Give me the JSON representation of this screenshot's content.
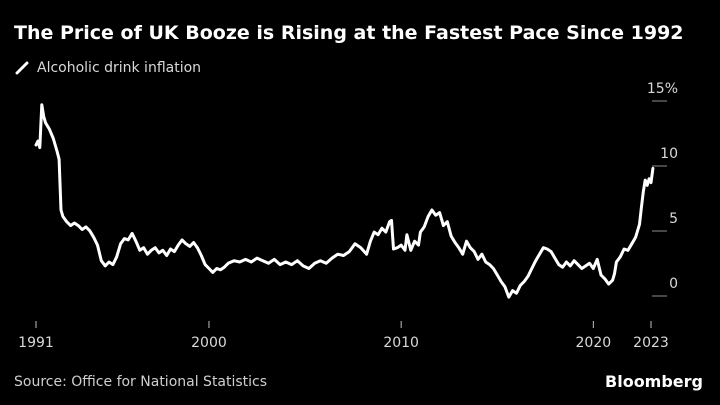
{
  "title": "The Price of UK Booze is Rising at the Fastest Pace Since 1992",
  "source": "Source: Office for National Statistics",
  "brand": "Bloomberg",
  "chart_data": {
    "type": "line",
    "series": [
      {
        "name": "Alcoholic drink inflation",
        "color": "#ffffff",
        "points": [
          [
            1991.0,
            11.0
          ],
          [
            1991.1,
            11.3
          ],
          [
            1991.2,
            10.8
          ],
          [
            1991.3,
            14.1
          ],
          [
            1991.4,
            13.2
          ],
          [
            1991.5,
            12.7
          ],
          [
            1991.7,
            12.2
          ],
          [
            1991.9,
            11.5
          ],
          [
            1992.1,
            10.5
          ],
          [
            1992.2,
            9.9
          ],
          [
            1992.3,
            6.0
          ],
          [
            1992.4,
            5.5
          ],
          [
            1992.6,
            5.1
          ],
          [
            1992.8,
            4.8
          ],
          [
            1993.0,
            5.0
          ],
          [
            1993.2,
            4.8
          ],
          [
            1993.4,
            4.5
          ],
          [
            1993.6,
            4.7
          ],
          [
            1993.8,
            4.4
          ],
          [
            1994.0,
            3.9
          ],
          [
            1994.2,
            3.3
          ],
          [
            1994.4,
            2.1
          ],
          [
            1994.6,
            1.7
          ],
          [
            1994.8,
            2.0
          ],
          [
            1995.0,
            1.8
          ],
          [
            1995.2,
            2.4
          ],
          [
            1995.4,
            3.4
          ],
          [
            1995.6,
            3.8
          ],
          [
            1995.8,
            3.7
          ],
          [
            1996.0,
            4.2
          ],
          [
            1996.2,
            3.6
          ],
          [
            1996.4,
            2.9
          ],
          [
            1996.6,
            3.1
          ],
          [
            1996.8,
            2.6
          ],
          [
            1997.0,
            2.9
          ],
          [
            1997.2,
            3.1
          ],
          [
            1997.4,
            2.7
          ],
          [
            1997.6,
            2.9
          ],
          [
            1997.8,
            2.5
          ],
          [
            1998.0,
            3.0
          ],
          [
            1998.2,
            2.8
          ],
          [
            1998.4,
            3.3
          ],
          [
            1998.6,
            3.7
          ],
          [
            1998.8,
            3.4
          ],
          [
            1999.0,
            3.2
          ],
          [
            1999.2,
            3.5
          ],
          [
            1999.4,
            3.1
          ],
          [
            1999.6,
            2.5
          ],
          [
            1999.8,
            1.8
          ],
          [
            2000.0,
            1.5
          ],
          [
            2000.2,
            1.2
          ],
          [
            2000.4,
            1.5
          ],
          [
            2000.6,
            1.4
          ],
          [
            2000.8,
            1.6
          ],
          [
            2001.0,
            1.9
          ],
          [
            2001.3,
            2.1
          ],
          [
            2001.6,
            2.0
          ],
          [
            2001.9,
            2.2
          ],
          [
            2002.2,
            2.0
          ],
          [
            2002.5,
            2.3
          ],
          [
            2002.8,
            2.1
          ],
          [
            2003.1,
            1.9
          ],
          [
            2003.4,
            2.2
          ],
          [
            2003.7,
            1.8
          ],
          [
            2004.0,
            2.0
          ],
          [
            2004.3,
            1.8
          ],
          [
            2004.6,
            2.1
          ],
          [
            2004.9,
            1.7
          ],
          [
            2005.2,
            1.5
          ],
          [
            2005.5,
            1.9
          ],
          [
            2005.8,
            2.1
          ],
          [
            2006.1,
            1.9
          ],
          [
            2006.4,
            2.3
          ],
          [
            2006.7,
            2.6
          ],
          [
            2007.0,
            2.5
          ],
          [
            2007.3,
            2.8
          ],
          [
            2007.6,
            3.4
          ],
          [
            2007.9,
            3.1
          ],
          [
            2008.2,
            2.6
          ],
          [
            2008.4,
            3.6
          ],
          [
            2008.6,
            4.3
          ],
          [
            2008.8,
            4.1
          ],
          [
            2009.0,
            4.6
          ],
          [
            2009.2,
            4.3
          ],
          [
            2009.4,
            5.1
          ],
          [
            2009.5,
            5.2
          ],
          [
            2009.6,
            3.0
          ],
          [
            2009.8,
            3.1
          ],
          [
            2010.0,
            3.3
          ],
          [
            2010.2,
            2.9
          ],
          [
            2010.3,
            4.1
          ],
          [
            2010.5,
            2.9
          ],
          [
            2010.7,
            3.6
          ],
          [
            2010.9,
            3.3
          ],
          [
            2011.0,
            4.3
          ],
          [
            2011.2,
            4.7
          ],
          [
            2011.4,
            5.5
          ],
          [
            2011.6,
            6.0
          ],
          [
            2011.8,
            5.6
          ],
          [
            2012.0,
            5.8
          ],
          [
            2012.2,
            4.8
          ],
          [
            2012.4,
            5.1
          ],
          [
            2012.6,
            4.0
          ],
          [
            2012.8,
            3.5
          ],
          [
            2013.0,
            3.1
          ],
          [
            2013.2,
            2.6
          ],
          [
            2013.4,
            3.6
          ],
          [
            2013.6,
            3.1
          ],
          [
            2013.8,
            2.8
          ],
          [
            2014.0,
            2.2
          ],
          [
            2014.2,
            2.6
          ],
          [
            2014.4,
            2.0
          ],
          [
            2014.6,
            1.8
          ],
          [
            2014.8,
            1.5
          ],
          [
            2015.0,
            1.0
          ],
          [
            2015.2,
            0.5
          ],
          [
            2015.4,
            0.1
          ],
          [
            2015.6,
            -0.7
          ],
          [
            2015.8,
            -0.2
          ],
          [
            2016.0,
            -0.4
          ],
          [
            2016.2,
            0.2
          ],
          [
            2016.4,
            0.5
          ],
          [
            2016.6,
            0.9
          ],
          [
            2016.8,
            1.5
          ],
          [
            2017.0,
            2.1
          ],
          [
            2017.2,
            2.6
          ],
          [
            2017.4,
            3.1
          ],
          [
            2017.6,
            3.0
          ],
          [
            2017.8,
            2.8
          ],
          [
            2018.0,
            2.3
          ],
          [
            2018.2,
            1.8
          ],
          [
            2018.4,
            1.6
          ],
          [
            2018.6,
            2.0
          ],
          [
            2018.8,
            1.7
          ],
          [
            2019.0,
            2.1
          ],
          [
            2019.2,
            1.8
          ],
          [
            2019.4,
            1.5
          ],
          [
            2019.6,
            1.7
          ],
          [
            2019.8,
            1.9
          ],
          [
            2020.0,
            1.5
          ],
          [
            2020.2,
            2.2
          ],
          [
            2020.4,
            1.0
          ],
          [
            2020.6,
            0.7
          ],
          [
            2020.8,
            0.3
          ],
          [
            2021.0,
            0.6
          ],
          [
            2021.1,
            1.1
          ],
          [
            2021.2,
            2.0
          ],
          [
            2021.4,
            2.4
          ],
          [
            2021.6,
            3.0
          ],
          [
            2021.8,
            2.9
          ],
          [
            2022.0,
            3.4
          ],
          [
            2022.2,
            3.9
          ],
          [
            2022.4,
            4.9
          ],
          [
            2022.5,
            6.2
          ],
          [
            2022.6,
            7.4
          ],
          [
            2022.7,
            8.3
          ],
          [
            2022.8,
            7.9
          ],
          [
            2022.9,
            8.4
          ],
          [
            2023.0,
            8.1
          ],
          [
            2023.1,
            9.2
          ]
        ]
      }
    ],
    "x_ticks": [
      {
        "value": 1991,
        "label": "1991"
      },
      {
        "value": 2000,
        "label": "2000"
      },
      {
        "value": 2010,
        "label": "2010"
      },
      {
        "value": 2020,
        "label": "2020"
      },
      {
        "value": 2023,
        "label": "2023"
      }
    ],
    "y_ticks": [
      {
        "value": 0,
        "label": "0"
      },
      {
        "value": 5,
        "label": "5"
      },
      {
        "value": 10,
        "label": "10"
      },
      {
        "value": 15,
        "label": "15%"
      }
    ],
    "xlim": [
      1991,
      2023
    ],
    "ylim": [
      -0.8,
      15
    ],
    "grid": false,
    "legend_position": "top-left"
  }
}
